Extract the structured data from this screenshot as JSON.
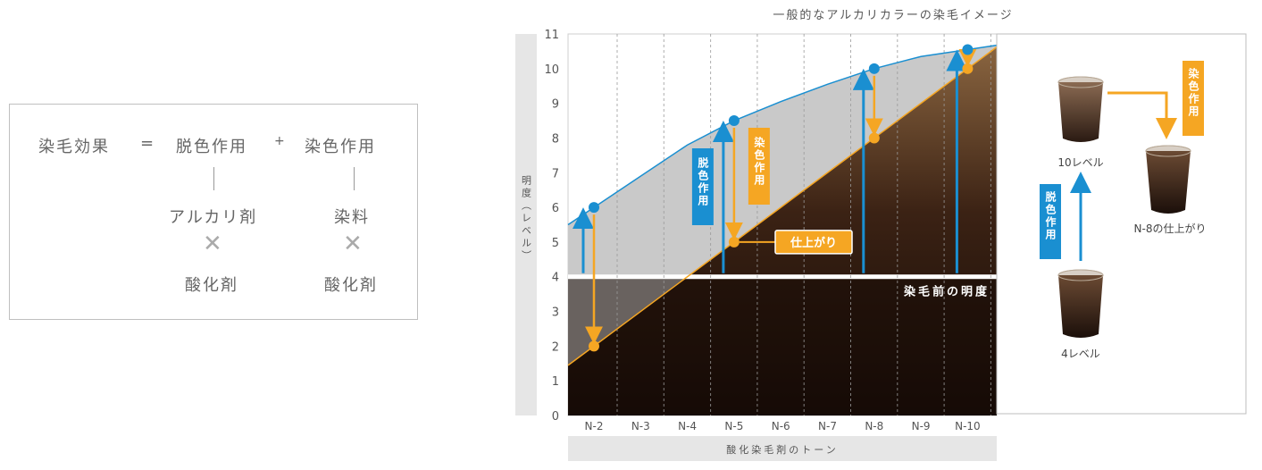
{
  "formula": {
    "left": "染毛効果",
    "eq": "=",
    "term1": "脱色作用",
    "plus": "+",
    "term2": "染色作用",
    "term1_a": "アルカリ剤",
    "term1_b": "酸化剤",
    "term2_a": "染料",
    "term2_b": "酸化剤"
  },
  "chart_data": {
    "type": "line",
    "title": "一般的なアルカリカラーの染毛イメージ",
    "xlabel": "酸化染毛剤のトーン",
    "ylabel": "明度（レベル）",
    "ylim": [
      0,
      11
    ],
    "categories": [
      "N-2",
      "N-3",
      "N-4",
      "N-5",
      "N-6",
      "N-7",
      "N-8",
      "N-9",
      "N-10"
    ],
    "y_ticks": [
      "0",
      "1",
      "2",
      "3",
      "4",
      "5",
      "6",
      "7",
      "8",
      "9",
      "10",
      "11"
    ],
    "grid": true,
    "series": [
      {
        "values": [
          6.0,
          6.9,
          7.8,
          8.5,
          9.05,
          9.55,
          10.0,
          10.35,
          10.55
        ],
        "color": "#1a8fd1"
      },
      {
        "values": [
          2.0,
          3.0,
          4.0,
          5.0,
          6.0,
          7.0,
          8.0,
          9.0,
          10.0
        ],
        "color": "#f5a623"
      }
    ],
    "pre_dye_level": 4,
    "pre_dye_label": "染毛前の明度",
    "bleach_label": "脱色作用",
    "dye_label": "染色作用",
    "finish_label": "仕上がり"
  },
  "side_panel": {
    "cup_top_label": "10レベル",
    "cup_result_label": "N-8の仕上がり",
    "cup_bottom_label": "4レベル",
    "bleach_label": "脱色作用",
    "dye_label": "染色作用"
  },
  "colors": {
    "blue": "#1a8fd1",
    "orange": "#f5a623",
    "dark_brown": "#1a0d08",
    "brown": "#7a5636",
    "gray_band": "#c9c9c9"
  }
}
